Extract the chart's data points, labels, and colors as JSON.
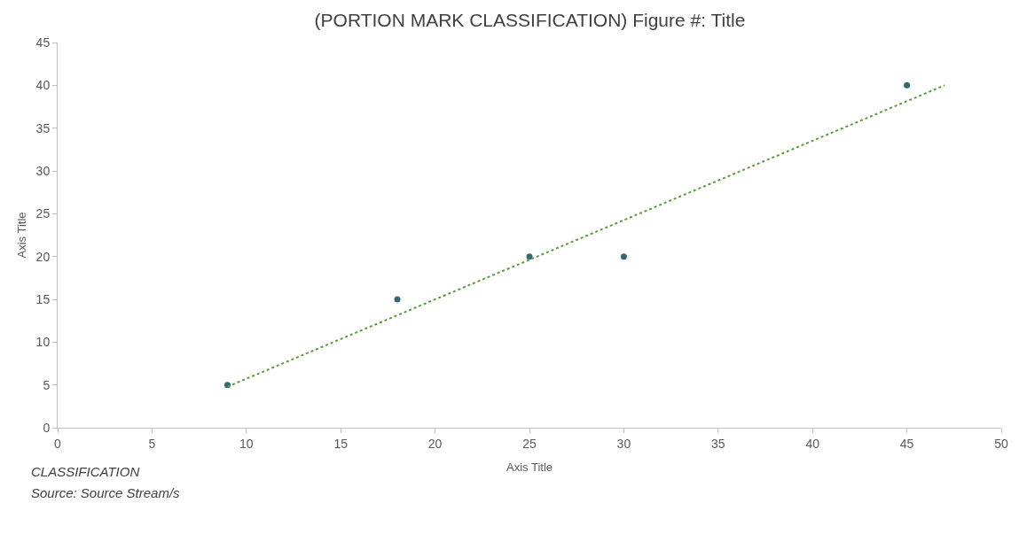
{
  "chart_data": {
    "type": "scatter",
    "title": "(PORTION MARK CLASSIFICATION) Figure #: Title",
    "xlabel": "Axis Title",
    "ylabel": "Axis Title",
    "annotations": [
      "CLASSIFICATION",
      "Source: Source Stream/s"
    ],
    "series": [
      {
        "color": "#2f6b70",
        "marker": "circle",
        "x": [
          9,
          18,
          25,
          30,
          45
        ],
        "values": [
          5,
          15,
          20,
          20,
          40
        ]
      },
      {
        "type": "line",
        "color": "#5b9b3c",
        "line_style": "dotted",
        "marker": "none",
        "x": [
          9,
          47
        ],
        "values": [
          4.8,
          40.0
        ]
      }
    ],
    "xlim": [
      0,
      50
    ],
    "xticks": [
      0,
      5,
      10,
      15,
      20,
      25,
      30,
      35,
      40,
      45,
      50
    ],
    "ylim": [
      0,
      45
    ],
    "yticks": [
      0,
      5,
      10,
      15,
      20,
      25,
      30,
      35,
      40,
      45
    ]
  }
}
